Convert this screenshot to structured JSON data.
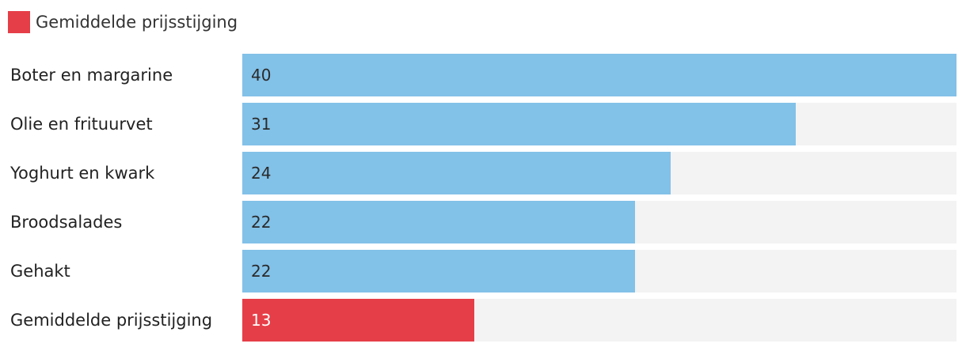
{
  "chart_data": {
    "type": "bar",
    "orientation": "horizontal",
    "legend": {
      "position": "top-left",
      "entries": [
        {
          "label": "Gemiddelde prijsstijging",
          "color": "#e63e48"
        }
      ]
    },
    "categories": [
      "Boter en margarine",
      "Olie en frituurvet",
      "Yoghurt en kwark",
      "Broodsalades",
      "Gehakt",
      "Gemiddelde prijsstijging"
    ],
    "values": [
      40,
      31,
      24,
      22,
      22,
      13
    ],
    "colors": [
      "#82c1e8",
      "#82c1e8",
      "#82c1e8",
      "#82c1e8",
      "#82c1e8",
      "#e63e48"
    ],
    "label_colors": [
      "#2a2a2a",
      "#2a2a2a",
      "#2a2a2a",
      "#2a2a2a",
      "#2a2a2a",
      "#ffffff"
    ],
    "track_color": "#f3f3f3",
    "xlim": [
      0,
      40
    ],
    "grid": false
  }
}
